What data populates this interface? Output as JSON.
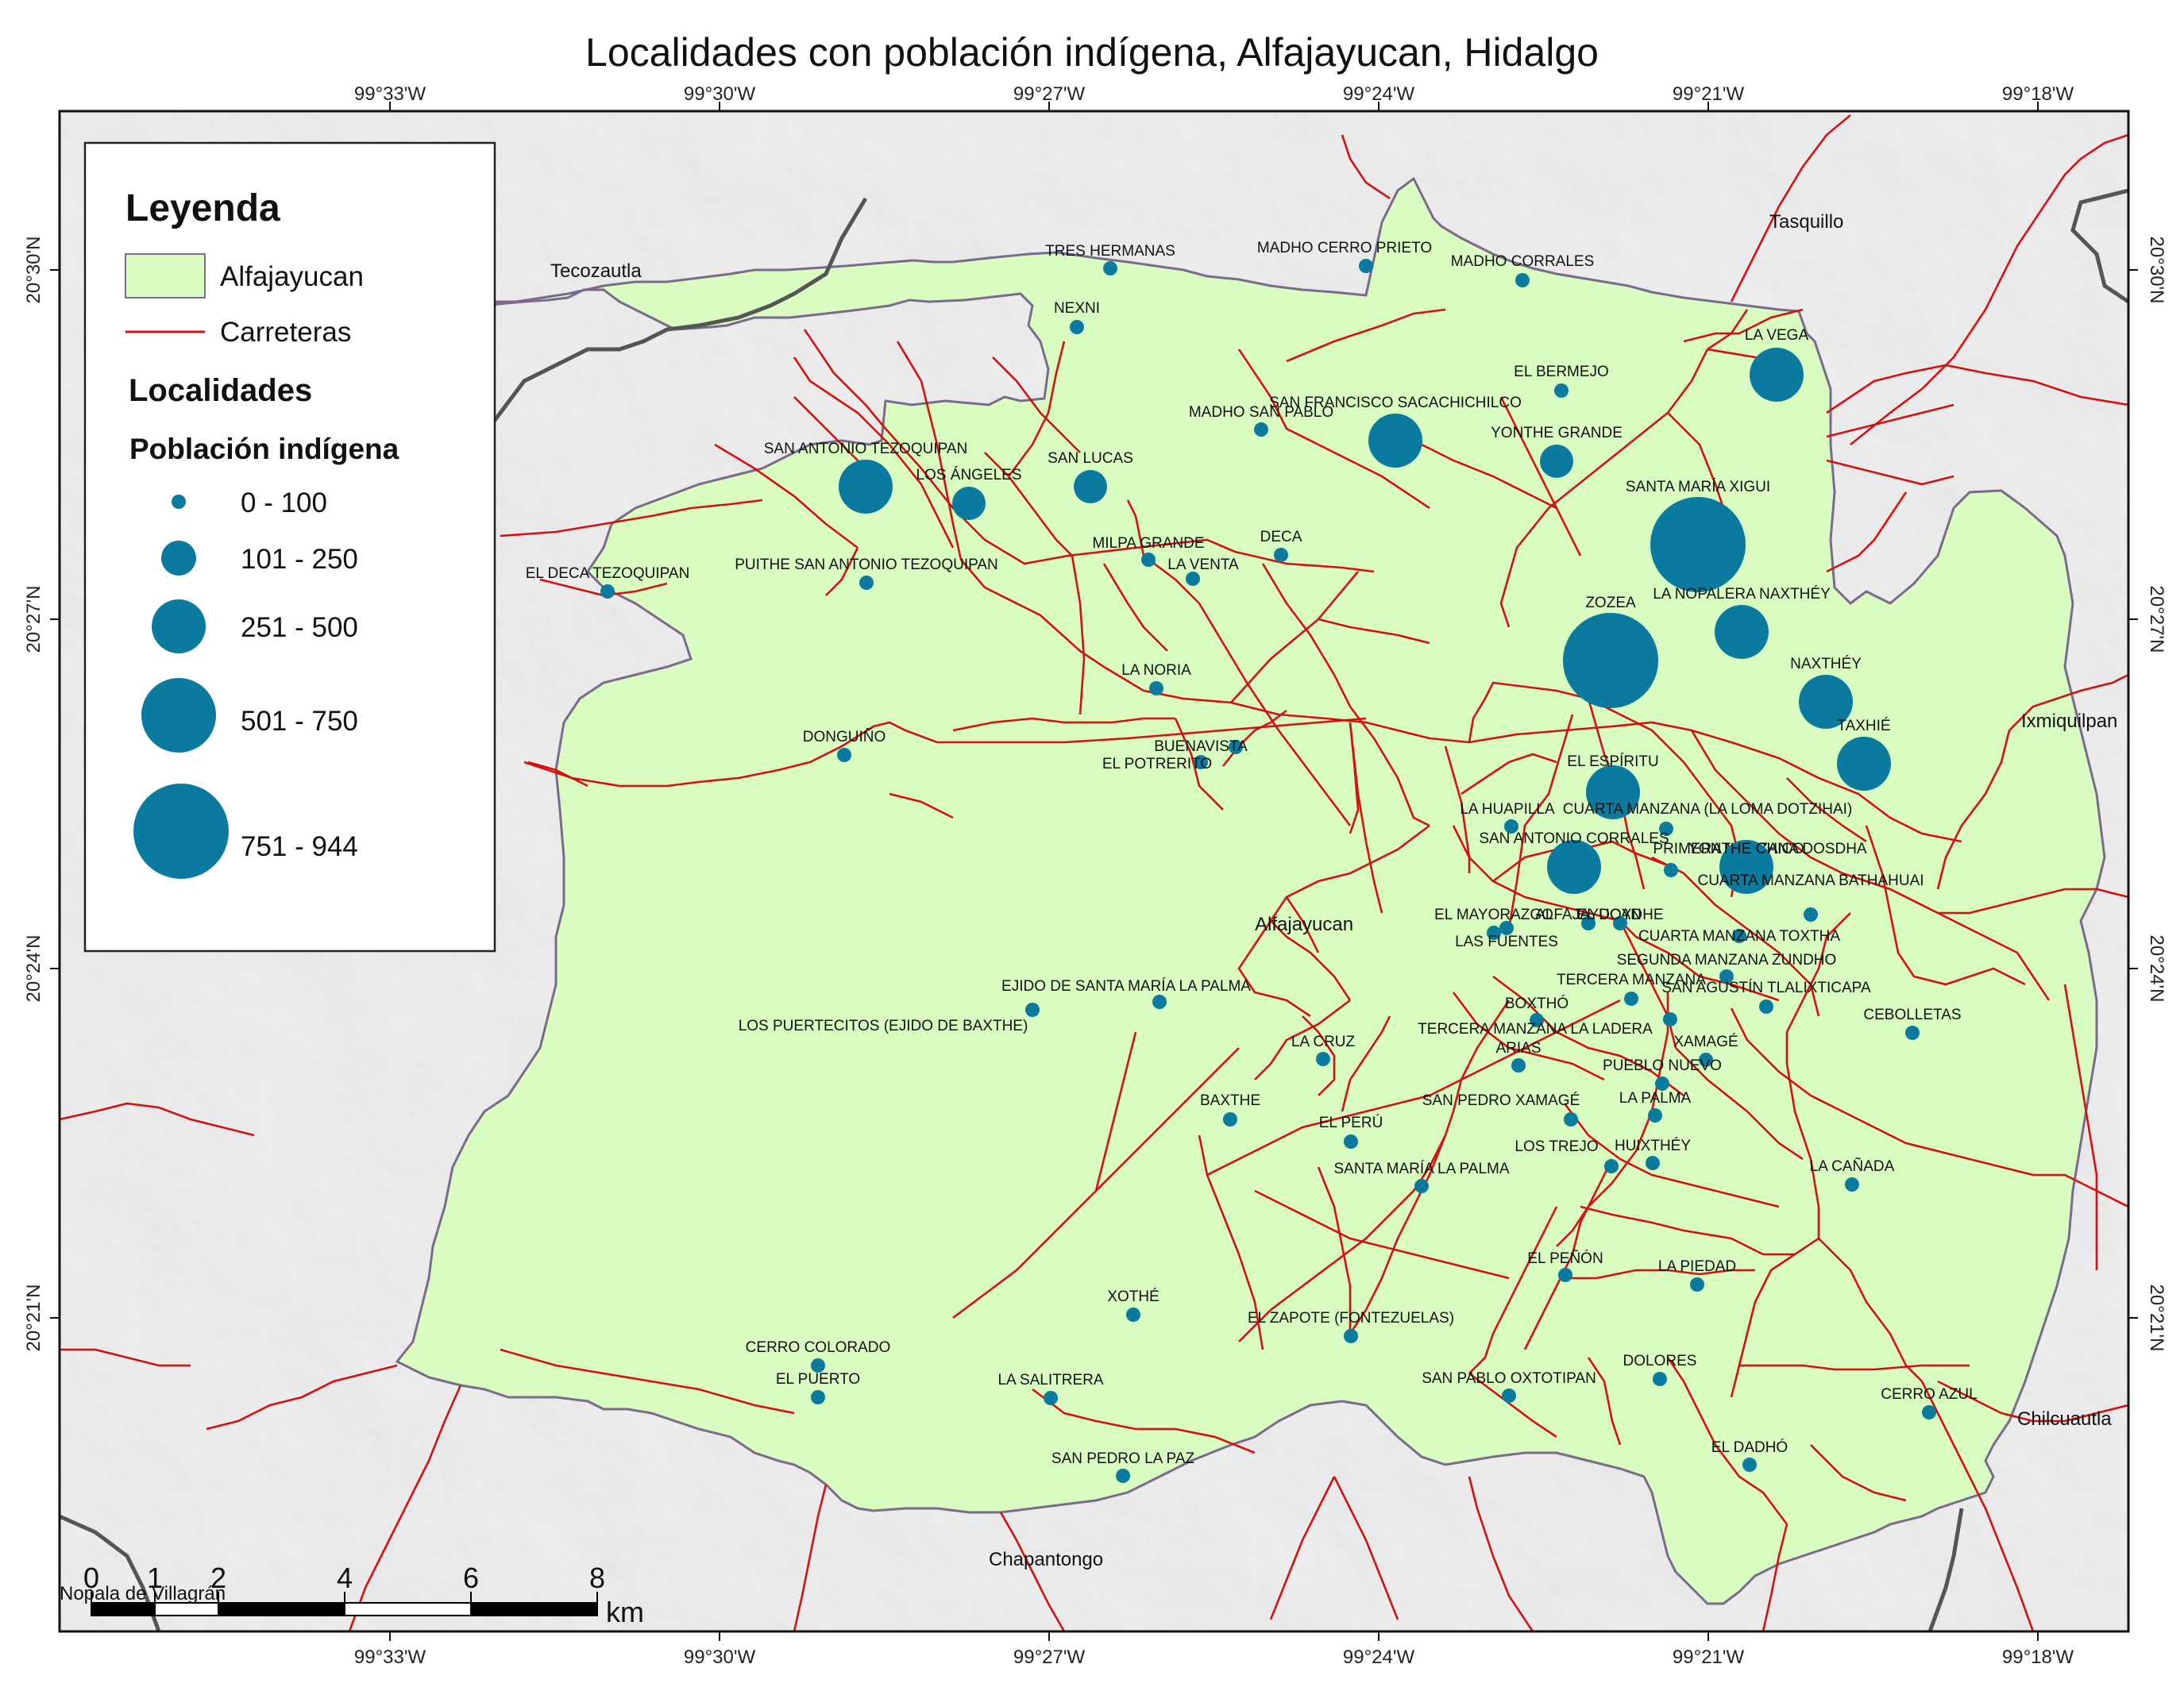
{
  "title": "Localidades con población indígena, Alfajayucan, Hidalgo",
  "colors": {
    "municipio_fill": "#d9fcc0",
    "municipio_border": "#7b6a8c",
    "roads": "#d41111",
    "symbols": "#0a7a9e",
    "state_border": "#555555",
    "hillshade": "#e4e4e4"
  },
  "graticule": {
    "top_labels": [
      "99°33'W",
      "99°30'W",
      "99°27'W",
      "99°24'W",
      "99°21'W",
      "99°18'W"
    ],
    "bottom_labels": [
      "99°33'W",
      "99°30'W",
      "99°27'W",
      "99°24'W",
      "99°21'W",
      "99°18'W"
    ],
    "left_labels": [
      "20°30'N",
      "20°27'N",
      "20°24'N",
      "20°21'N"
    ],
    "right_labels": [
      "20°30'N",
      "20°27'N",
      "20°24'N",
      "20°21'N"
    ]
  },
  "legend": {
    "title": "Leyenda",
    "municipio_label": "Alfajayucan",
    "roads_label": "Carreteras",
    "localidades_title": "Localidades",
    "population_title": "Población indígena",
    "classes": [
      "0 - 100",
      "101 - 250",
      "251 - 500",
      "501 - 750",
      "751 - 944"
    ]
  },
  "scale_bar": {
    "ticks": [
      "0",
      "1",
      "2",
      "4",
      "6",
      "8"
    ],
    "unit": "km"
  },
  "places": {
    "tasquillo": "Tasquillo",
    "tecozautla": "Tecozautla",
    "alfajayucan": "Alfajayucan",
    "ixmiquilpan": "Ixmiquilpan",
    "chilcuautla": "Chilcuautla",
    "chapantongo": "Chapantongo",
    "nopala": "Nopala de Villagrán"
  },
  "localities": [
    {
      "name": "TRES HERMANAS",
      "class": 1
    },
    {
      "name": "MADHO CERRO PRIETO",
      "class": 1
    },
    {
      "name": "MADHO CORRALES",
      "class": 1
    },
    {
      "name": "NEXNI",
      "class": 1
    },
    {
      "name": "LA VEGA",
      "class": 3
    },
    {
      "name": "EL BERMEJO",
      "class": 1
    },
    {
      "name": "MADHO SAN PABLO",
      "class": 1
    },
    {
      "name": "SAN FRANCISCO SACACHICHILCO",
      "class": 4
    },
    {
      "name": "YONTHE GRANDE",
      "class": 2
    },
    {
      "name": "SAN ANTONIO TEZOQUIPAN",
      "class": 4
    },
    {
      "name": "LOS ÁNGELES",
      "class": 2
    },
    {
      "name": "SAN LUCAS",
      "class": 2
    },
    {
      "name": "SANTA MARÍA XIGUI",
      "class": 5
    },
    {
      "name": "MILPA GRANDE",
      "class": 1
    },
    {
      "name": "DECA",
      "class": 1
    },
    {
      "name": "LA VENTA",
      "class": 1
    },
    {
      "name": "EL DECA TEZOQUIPAN",
      "class": 1
    },
    {
      "name": "PUITHE SAN ANTONIO TEZOQUIPAN",
      "class": 1
    },
    {
      "name": "ZOZEA",
      "class": 5
    },
    {
      "name": "LA NOPALERA NAXTHÉY",
      "class": 4
    },
    {
      "name": "LA NORIA",
      "class": 1
    },
    {
      "name": "NAXTHÉY",
      "class": 4
    },
    {
      "name": "TAXHIÉ",
      "class": 4
    },
    {
      "name": "DONGUIÑO",
      "class": 1
    },
    {
      "name": "BUENAVISTA",
      "class": 1
    },
    {
      "name": "EL POTRERITO",
      "class": 1
    },
    {
      "name": "EL ESPÍRITU",
      "class": 4
    },
    {
      "name": "LA HUAPILLA",
      "class": 1
    },
    {
      "name": "CUARTA MANZANA (LA LOMA DOTZIHAI)",
      "class": 1
    },
    {
      "name": "SAN ANTONIO CORRALES",
      "class": 3
    },
    {
      "name": "PRIMERA MANZANA DOSDHA",
      "class": 1
    },
    {
      "name": "YONTHE CHICO",
      "class": 4
    },
    {
      "name": "CUARTA MANZANA BATHAHUAI",
      "class": 1
    },
    {
      "name": "EL MAYORAZGO",
      "class": 1
    },
    {
      "name": "ALFAJAYUCAN",
      "class": 1
    },
    {
      "name": "EL DOYDHE",
      "class": 1
    },
    {
      "name": "CUARTA MANZANA TOXTHA",
      "class": 1
    },
    {
      "name": "LAS FUENTES",
      "class": 1
    },
    {
      "name": "SEGUNDA MANZANA ZUNDHO",
      "class": 1
    },
    {
      "name": "TERCERA MANZANA",
      "class": 1
    },
    {
      "name": "SAN AGUSTÍN TLALIXTICAPA",
      "class": 1
    },
    {
      "name": "EJIDO DE SANTA MARÍA LA PALMA",
      "class": 1
    },
    {
      "name": "LOS PUERTECITOS (EJIDO DE BAXTHE)",
      "class": 1
    },
    {
      "name": "BOXTHÓ",
      "class": 1
    },
    {
      "name": "CEBOLLETAS",
      "class": 1
    },
    {
      "name": "TERCERA MANZANA LA LADERA",
      "class": 1
    },
    {
      "name": "LA CRUZ",
      "class": 1
    },
    {
      "name": "ARIAS",
      "class": 1
    },
    {
      "name": "XAMAGÉ",
      "class": 1
    },
    {
      "name": "PUEBLO NUEVO",
      "class": 1
    },
    {
      "name": "BAXTHE",
      "class": 1
    },
    {
      "name": "SAN PEDRO XAMAGÉ",
      "class": 1
    },
    {
      "name": "LA PALMA",
      "class": 1
    },
    {
      "name": "EL PERÚ",
      "class": 1
    },
    {
      "name": "LOS TREJO",
      "class": 1
    },
    {
      "name": "HUIXTHÉY",
      "class": 1
    },
    {
      "name": "LA CAÑADA",
      "class": 1
    },
    {
      "name": "SANTA MARÍA LA PALMA",
      "class": 1
    },
    {
      "name": "EL PEÑÓN",
      "class": 1
    },
    {
      "name": "LA PIEDAD",
      "class": 1
    },
    {
      "name": "XOTHÉ",
      "class": 1
    },
    {
      "name": "EL ZAPOTE (FONTEZUELAS)",
      "class": 1
    },
    {
      "name": "CERRO COLORADO",
      "class": 1
    },
    {
      "name": "EL PUERTO",
      "class": 1
    },
    {
      "name": "LA SALITRERA",
      "class": 1
    },
    {
      "name": "SAN PABLO OXTOTIPAN",
      "class": 1
    },
    {
      "name": "DOLORES",
      "class": 1
    },
    {
      "name": "CERRO AZUL",
      "class": 1
    },
    {
      "name": "EL DADHÓ",
      "class": 1
    },
    {
      "name": "SAN PEDRO LA PAZ",
      "class": 1
    }
  ]
}
